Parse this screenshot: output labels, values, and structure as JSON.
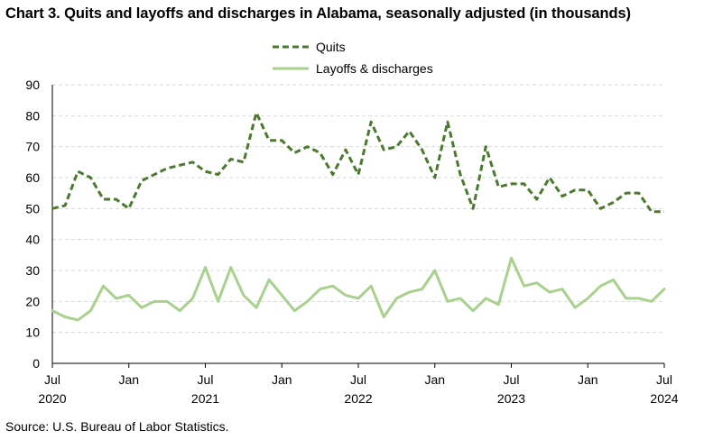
{
  "chart_data": {
    "type": "line",
    "title": "Chart 3. Quits and layoffs and discharges in Alabama, seasonally adjusted (in thousands)",
    "source": "Source: U.S. Bureau of Labor Statistics.",
    "xlabel": "",
    "ylabel": "",
    "ylim": [
      0,
      90
    ],
    "yticks": [
      0,
      10,
      20,
      30,
      40,
      50,
      60,
      70,
      80,
      90
    ],
    "grid": true,
    "legend_position": "top-center",
    "x": [
      "2020-07",
      "2020-08",
      "2020-09",
      "2020-10",
      "2020-11",
      "2020-12",
      "2021-01",
      "2021-02",
      "2021-03",
      "2021-04",
      "2021-05",
      "2021-06",
      "2021-07",
      "2021-08",
      "2021-09",
      "2021-10",
      "2021-11",
      "2021-12",
      "2022-01",
      "2022-02",
      "2022-03",
      "2022-04",
      "2022-05",
      "2022-06",
      "2022-07",
      "2022-08",
      "2022-09",
      "2022-10",
      "2022-11",
      "2022-12",
      "2023-01",
      "2023-02",
      "2023-03",
      "2023-04",
      "2023-05",
      "2023-06",
      "2023-07",
      "2023-08",
      "2023-09",
      "2023-10",
      "2023-11",
      "2023-12",
      "2024-01",
      "2024-02",
      "2024-03",
      "2024-04",
      "2024-05",
      "2024-06",
      "2024-07"
    ],
    "x_tick_labels": [
      {
        "month": "Jul",
        "year": "2020",
        "index": 0
      },
      {
        "month": "Jan",
        "year": "",
        "index": 6
      },
      {
        "month": "Jul",
        "year": "2021",
        "index": 12
      },
      {
        "month": "Jan",
        "year": "",
        "index": 18
      },
      {
        "month": "Jul",
        "year": "2022",
        "index": 24
      },
      {
        "month": "Jan",
        "year": "",
        "index": 30
      },
      {
        "month": "Jul",
        "year": "2023",
        "index": 36
      },
      {
        "month": "Jan",
        "year": "",
        "index": 42
      },
      {
        "month": "Jul",
        "year": "2024",
        "index": 48
      }
    ],
    "series": [
      {
        "name": "Quits",
        "color": "#4a7a2e",
        "style": "dashed",
        "values": [
          50,
          51,
          62,
          60,
          53,
          53,
          50,
          59,
          61,
          63,
          64,
          65,
          62,
          61,
          66,
          65,
          81,
          72,
          72,
          68,
          70,
          68,
          61,
          69,
          61,
          78,
          69,
          70,
          75,
          69,
          60,
          78,
          61,
          50,
          70,
          57,
          58,
          58,
          53,
          60,
          54,
          56,
          56,
          50,
          52,
          55,
          55,
          49,
          49
        ]
      },
      {
        "name": "Layoffs & discharges",
        "color": "#a9d18e",
        "style": "solid",
        "values": [
          17,
          15,
          14,
          17,
          25,
          21,
          22,
          18,
          20,
          20,
          17,
          21,
          31,
          20,
          31,
          22,
          18,
          27,
          22,
          17,
          20,
          24,
          25,
          22,
          21,
          25,
          15,
          21,
          23,
          24,
          30,
          20,
          21,
          17,
          21,
          19,
          34,
          25,
          26,
          23,
          24,
          18,
          21,
          25,
          27,
          21,
          21,
          20,
          24
        ]
      }
    ]
  }
}
